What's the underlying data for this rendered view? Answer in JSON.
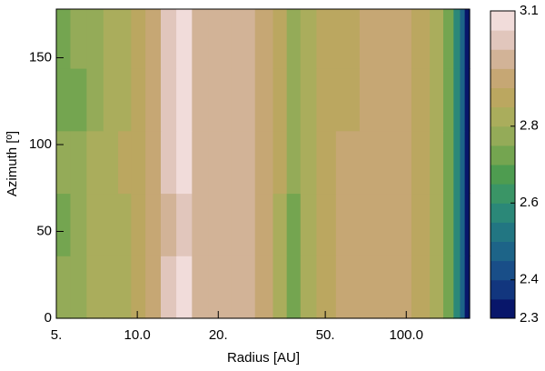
{
  "chart_data": {
    "type": "contour",
    "xlabel": "Radius [AU]",
    "ylabel": "Azimuth [º]",
    "xscale": "log",
    "xlim": [
      5,
      172
    ],
    "ylim": [
      0,
      178
    ],
    "xticks": [
      {
        "value": 5,
        "label": "5."
      },
      {
        "value": 10,
        "label": "10.0"
      },
      {
        "value": 20,
        "label": "20."
      },
      {
        "value": 50,
        "label": "50."
      },
      {
        "value": 100,
        "label": "100.0"
      }
    ],
    "yticks": [
      0,
      50,
      100,
      150
    ],
    "x": [
      5.3,
      6,
      7,
      8,
      9,
      10,
      11.5,
      13,
      15,
      17,
      20,
      25,
      30,
      34,
      38,
      43,
      50,
      60,
      75,
      95,
      115,
      130,
      145,
      155,
      162,
      168
    ],
    "y": [
      18,
      54,
      90,
      126,
      162
    ],
    "z": [
      [
        2.76,
        2.78,
        2.8,
        2.82,
        2.84,
        2.87,
        2.93,
        3.02,
        3.06,
        2.97,
        2.96,
        2.96,
        2.92,
        2.84,
        2.74,
        2.82,
        2.86,
        2.9,
        2.92,
        2.91,
        2.88,
        2.82,
        2.72,
        2.58,
        2.45,
        2.32
      ],
      [
        2.72,
        2.76,
        2.8,
        2.82,
        2.84,
        2.88,
        2.94,
        2.98,
        3.02,
        2.97,
        2.97,
        2.96,
        2.93,
        2.8,
        2.7,
        2.8,
        2.86,
        2.9,
        2.91,
        2.9,
        2.87,
        2.82,
        2.72,
        2.58,
        2.45,
        2.32
      ],
      [
        2.77,
        2.79,
        2.8,
        2.82,
        2.85,
        2.88,
        2.93,
        3.02,
        3.06,
        2.97,
        2.96,
        2.96,
        2.92,
        2.86,
        2.78,
        2.84,
        2.87,
        2.9,
        2.92,
        2.91,
        2.88,
        2.82,
        2.72,
        2.58,
        2.45,
        2.32
      ],
      [
        2.73,
        2.74,
        2.78,
        2.81,
        2.84,
        2.87,
        2.92,
        3.03,
        3.06,
        2.97,
        2.96,
        2.95,
        2.91,
        2.86,
        2.78,
        2.84,
        2.87,
        2.89,
        2.92,
        2.91,
        2.88,
        2.82,
        2.72,
        2.58,
        2.45,
        2.32
      ],
      [
        2.74,
        2.76,
        2.79,
        2.81,
        2.84,
        2.87,
        2.92,
        3.01,
        3.06,
        2.97,
        2.96,
        2.95,
        2.91,
        2.85,
        2.78,
        2.84,
        2.87,
        2.89,
        2.91,
        2.91,
        2.88,
        2.82,
        2.72,
        2.58,
        2.45,
        2.32
      ]
    ],
    "levels": [
      2.3,
      2.35,
      2.4,
      2.45,
      2.5,
      2.55,
      2.6,
      2.65,
      2.7,
      2.75,
      2.8,
      2.85,
      2.9,
      2.95,
      3.0,
      3.05,
      3.1
    ],
    "colors": [
      "#08166a",
      "#12367e",
      "#194e88",
      "#1d6488",
      "#227682",
      "#2b8878",
      "#3a9566",
      "#4e9c50",
      "#74a550",
      "#94ab58",
      "#aaad5c",
      "#bba760",
      "#c6a774",
      "#d2b397",
      "#e1c6bc",
      "#f1dcda"
    ],
    "cticks": [
      2.3,
      2.4,
      2.6,
      2.8,
      3.1
    ]
  }
}
